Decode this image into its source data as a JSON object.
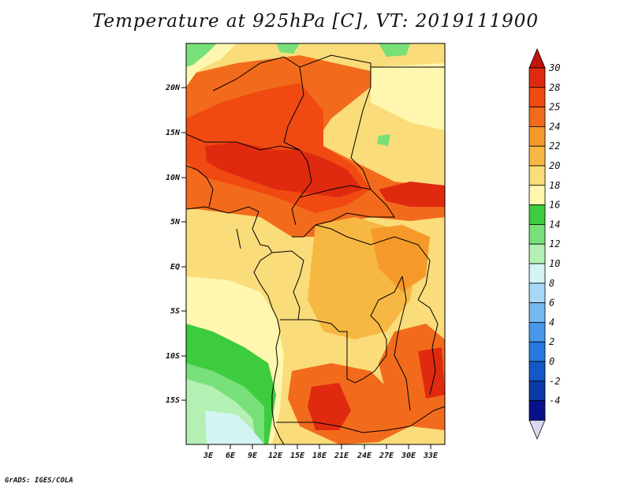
{
  "title": "Temperature at 925hPa [C], VT: 2019111900",
  "footer": "GrADS: IGES/COLA",
  "map": {
    "lat_labels": [
      "20N",
      "15N",
      "10N",
      "5N",
      "EQ",
      "5S",
      "10S",
      "15S"
    ],
    "lon_labels": [
      "3E",
      "6E",
      "9E",
      "12E",
      "15E",
      "18E",
      "21E",
      "24E",
      "27E",
      "30E",
      "33E"
    ]
  },
  "colorbar": {
    "labels": [
      "30",
      "28",
      "25",
      "24",
      "22",
      "20",
      "18",
      "16",
      "14",
      "12",
      "10",
      "8",
      "6",
      "4",
      "2",
      "0",
      "-2",
      "-4"
    ],
    "colors": [
      "#e02a0f",
      "#f04a12",
      "#f26b1c",
      "#f59a2a",
      "#f7b843",
      "#fadc7a",
      "#fff7b0",
      "#3dcc3d",
      "#78e078",
      "#b4f0b4",
      "#d4f4f4",
      "#a8d8f8",
      "#78b8f0",
      "#4898e8",
      "#2878e0",
      "#1458c8",
      "#0a3aa8",
      "#08108a"
    ],
    "top_color": "#c0140c",
    "bottom_color": "#d8d8f0"
  }
}
